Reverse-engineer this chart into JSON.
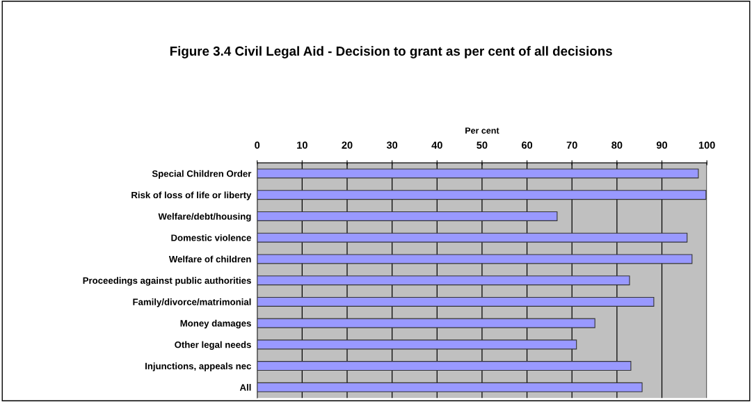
{
  "chart_data": {
    "type": "bar",
    "orientation": "horizontal",
    "title": "Figure 3.4 Civil Legal Aid - Decision to grant as per cent of all decisions",
    "xlabel": "Per cent",
    "categories": [
      "Special Children Order",
      "Risk of loss of life or liberty",
      "Welfare/debt/housing",
      "Domestic violence",
      "Welfare of children",
      "Proceedings against public authorities",
      "Family/divorce/matrimonial",
      "Money damages",
      "Other legal needs",
      "Injunctions, appeals nec",
      "All"
    ],
    "values": [
      98.1,
      99.8,
      66.7,
      95.6,
      96.7,
      82.8,
      88.2,
      75.1,
      71.0,
      83.1,
      85.6
    ],
    "color": "#9999ff",
    "xlim": [
      0,
      100
    ],
    "xticks": [
      0,
      10,
      20,
      30,
      40,
      50,
      60,
      70,
      80,
      90,
      100
    ],
    "grid": "x",
    "legend": false
  }
}
